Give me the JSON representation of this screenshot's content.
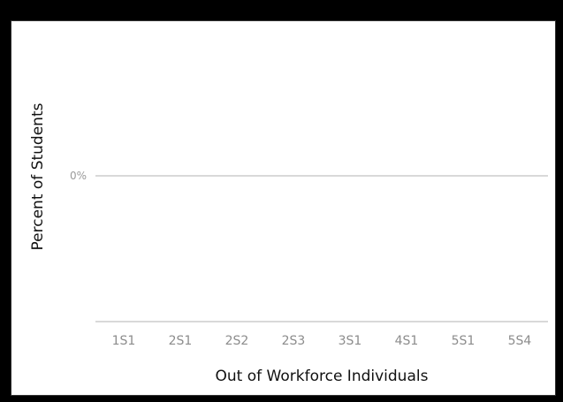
{
  "chart_data": {
    "type": "bar",
    "categories": [
      "1S1",
      "2S1",
      "2S2",
      "2S3",
      "3S1",
      "4S1",
      "5S1",
      "5S4"
    ],
    "values": [
      0,
      0,
      0,
      0,
      0,
      0,
      0,
      0
    ],
    "xlabel": "Out of Workforce Individuals",
    "ylabel": "Percent of Students",
    "yticks": [
      "0%"
    ],
    "colors": {
      "gridline": "#b3b3b3",
      "tick_text": "#8c8c8c",
      "frame": "#000000",
      "panel": "#ffffff"
    }
  }
}
